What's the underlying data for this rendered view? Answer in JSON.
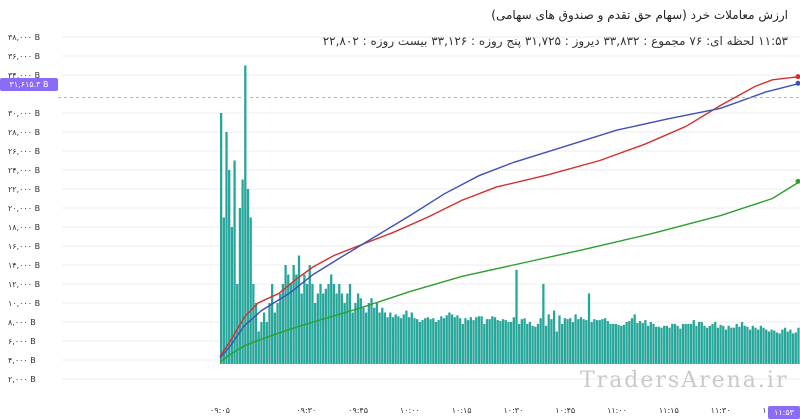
{
  "header": {
    "title": "ارزش معاملات خرد (سهام حق تقدم و صندوق های سهامی)",
    "info": "۱۱:۵۳ لحظه ای: ۷۶ مجموع : ۳۳,۸۳۲ دیروز : ۳۱,۷۲۵ پنج روزه : ۳۳,۱۲۶ بیست روزه : ۲۲,۸۰۲"
  },
  "watermark": "TradersArena.ir",
  "crosshair": {
    "price_label": "۳۱,۶۱۵.۳ B",
    "time_label": "۱۱:۵۳"
  },
  "colors": {
    "bars": "#26a69a",
    "line_today": "#d32f2f",
    "line_yesterday": "#3f51b5",
    "line_green": "#2e9e2e",
    "crosshair_bg": "#8a6cf6"
  },
  "chart_data": {
    "type": "bar",
    "title": "ارزش معاملات خرد (سهام حق تقدم و صندوق های سهامی)",
    "ylim": [
      0,
      40000
    ],
    "y_ticks": [
      2000,
      4000,
      6000,
      8000,
      10000,
      12000,
      14000,
      16000,
      18000,
      20000,
      22000,
      24000,
      26000,
      28000,
      30000,
      34000,
      36000,
      38000
    ],
    "y_tick_labels": [
      "۲,۰۰۰ B",
      "۴,۰۰۰ B",
      "۶,۰۰۰ B",
      "۸,۰۰۰ B",
      "۱۰,۰۰۰ B",
      "۱۲,۰۰۰ B",
      "۱۴,۰۰۰ B",
      "۱۶,۰۰۰ B",
      "۱۸,۰۰۰ B",
      "۲۰,۰۰۰ B",
      "۲۲,۰۰۰ B",
      "۲۴,۰۰۰ B",
      "۲۶,۰۰۰ B",
      "۲۸,۰۰۰ B",
      "۳۰,۰۰۰ B",
      "۳۴,۰۰۰ B",
      "۳۶,۰۰۰ B",
      "۳۸,۰۰۰ B"
    ],
    "x_ticks": [
      "۰۹:۰۵",
      "۰۹:۳۰",
      "۰۹:۴۵",
      "۱۰:۰۰",
      "۱۰:۱۵",
      "۱۰:۳۰",
      "۱۰:۴۵",
      "۱۱:۰۰",
      "۱۱:۱۵",
      "۱۱:۳۰",
      "۱۱:۴۵",
      "۱۱"
    ],
    "x_tick_minutes": [
      545,
      570,
      585,
      600,
      615,
      630,
      645,
      660,
      675,
      690,
      705,
      715
    ],
    "x_range_minutes": [
      545,
      713
    ],
    "series": [
      {
        "kind": "bar",
        "values": [
          30000,
          19000,
          28000,
          24000,
          18000,
          25000,
          12000,
          20000,
          23000,
          35000,
          22000,
          19000,
          12000,
          10000,
          7000,
          8000,
          9000,
          8000,
          10000,
          12000,
          9000,
          10000,
          11000,
          12000,
          14000,
          13000,
          12000,
          14000,
          13000,
          15000,
          11000,
          13000,
          12000,
          14000,
          12000,
          10000,
          11000,
          12000,
          11000,
          11500,
          12000,
          13000,
          12000,
          11000,
          12000,
          11000,
          10000,
          11000,
          12000,
          9000,
          10000,
          11000,
          10500,
          9500,
          9000,
          10000,
          10500,
          9500,
          10000,
          9000,
          9500,
          9000,
          8500,
          9000,
          8500,
          8800,
          8600,
          8400,
          8800,
          9200,
          8500,
          9000,
          8400,
          8300,
          8000,
          8200,
          8400,
          8500,
          8300,
          8400,
          8000,
          8200,
          8600,
          8400,
          8700,
          9000,
          8800,
          8500,
          8700,
          8400,
          7800,
          8400,
          8200,
          8500,
          8200,
          8500,
          8600,
          8600,
          7800,
          8300,
          8300,
          8600,
          8500,
          8200,
          8100,
          8300,
          8200,
          8000,
          8000,
          8500,
          13500,
          7800,
          8300,
          8400,
          7800,
          8000,
          7600,
          7500,
          7800,
          8400,
          12000,
          7600,
          8800,
          8300,
          9200,
          7000,
          8700,
          7800,
          8400,
          8300,
          8400,
          8000,
          8800,
          8300,
          8500,
          8300,
          8200,
          11000,
          8000,
          8300,
          8200,
          8200,
          8300,
          8400,
          8100,
          7800,
          7800,
          7800,
          7700,
          7600,
          7700,
          8000,
          8100,
          8400,
          8800,
          7900,
          8100,
          7900,
          8200,
          7600,
          8000,
          7800,
          7500,
          7500,
          7400,
          7600,
          7600,
          7400,
          7800,
          7800,
          7600,
          7300,
          7800,
          7800,
          7800,
          7800,
          8200,
          7600,
          8000,
          8000,
          7600,
          7400,
          7600,
          7800,
          8000,
          7400,
          7700,
          7600,
          7200,
          7600,
          7400,
          7400,
          7800,
          7500,
          8000,
          7600,
          7500,
          7200,
          7600,
          7400,
          7200,
          7600,
          7400,
          7200,
          7000,
          7200,
          7100,
          6900,
          6800,
          7200,
          7400,
          7000,
          7200,
          6800,
          6900,
          7400
        ]
      },
      {
        "kind": "line",
        "color": "#d32f2f",
        "points": [
          [
            545,
            4400
          ],
          [
            548,
            6000
          ],
          [
            552,
            8500
          ],
          [
            556,
            10000
          ],
          [
            562,
            11000
          ],
          [
            567,
            12500
          ],
          [
            572,
            13800
          ],
          [
            578,
            15000
          ],
          [
            585,
            16000
          ],
          [
            595,
            17400
          ],
          [
            605,
            19000
          ],
          [
            615,
            20800
          ],
          [
            625,
            22200
          ],
          [
            640,
            23500
          ],
          [
            655,
            25000
          ],
          [
            668,
            26700
          ],
          [
            680,
            28600
          ],
          [
            690,
            30800
          ],
          [
            700,
            32800
          ],
          [
            705,
            33500
          ],
          [
            713,
            33832
          ]
        ]
      },
      {
        "kind": "line",
        "color": "#3f51b5",
        "points": [
          [
            545,
            4200
          ],
          [
            548,
            5500
          ],
          [
            552,
            7600
          ],
          [
            557,
            9200
          ],
          [
            565,
            11000
          ],
          [
            572,
            13000
          ],
          [
            580,
            14800
          ],
          [
            590,
            17000
          ],
          [
            600,
            19200
          ],
          [
            610,
            21500
          ],
          [
            620,
            23400
          ],
          [
            630,
            24800
          ],
          [
            645,
            26500
          ],
          [
            660,
            28200
          ],
          [
            675,
            29400
          ],
          [
            690,
            30500
          ],
          [
            703,
            32200
          ],
          [
            713,
            33126
          ]
        ]
      },
      {
        "kind": "line",
        "color": "#2e9e2e",
        "points": [
          [
            545,
            3800
          ],
          [
            548,
            4600
          ],
          [
            552,
            5500
          ],
          [
            557,
            6200
          ],
          [
            565,
            7200
          ],
          [
            572,
            8000
          ],
          [
            585,
            9400
          ],
          [
            600,
            11200
          ],
          [
            615,
            12800
          ],
          [
            630,
            14000
          ],
          [
            650,
            15600
          ],
          [
            670,
            17300
          ],
          [
            690,
            19200
          ],
          [
            705,
            21000
          ],
          [
            713,
            22802
          ]
        ]
      }
    ],
    "crosshair_value": 31615.3
  }
}
